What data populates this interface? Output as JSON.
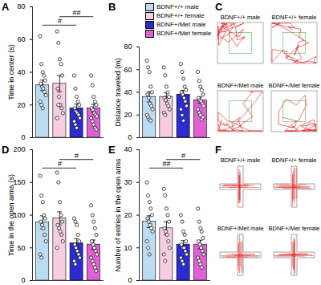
{
  "chart_data": [
    {
      "title": "A",
      "type": "bar",
      "y_label": "Time in center (s)",
      "categories": [
        "BDNF+/+ male",
        "BDNF+/+ female",
        "BDNF+/Met male",
        "BDNF+/Met female"
      ],
      "colors": [
        "#bcdcf3",
        "#f6cde3",
        "#2b2bd0",
        "#e25fd6"
      ],
      "values": [
        32,
        33,
        18,
        18
      ],
      "errors": [
        3.2,
        5,
        2.5,
        2.4
      ],
      "points": [
        [
          62,
          45,
          40,
          38,
          35,
          33,
          31,
          30,
          28,
          26,
          22,
          20,
          18
        ],
        [
          65,
          58,
          48,
          45,
          38,
          30,
          25,
          20,
          18,
          15,
          12,
          20
        ],
        [
          38,
          30,
          25,
          22,
          20,
          18,
          16,
          15,
          14,
          12,
          10,
          8,
          6
        ],
        [
          38,
          32,
          25,
          22,
          20,
          18,
          17,
          15,
          14,
          13,
          12,
          10,
          8,
          6,
          5
        ]
      ],
      "ylim": [
        0,
        80
      ],
      "yticks": [
        0,
        20,
        40,
        60,
        80
      ],
      "tick_labels": "y",
      "significance": [
        {
          "groups": [
            0,
            2
          ],
          "label": "#"
        },
        {
          "groups": [
            1,
            3
          ],
          "label": "##"
        }
      ]
    },
    {
      "title": "B",
      "type": "bar",
      "y_label": "Distance traveled (m)",
      "categories": [
        "BDNF+/+ male",
        "BDNF+/+ female",
        "BDNF+/Met male",
        "BDNF+/Met female"
      ],
      "colors": [
        "#bcdcf3",
        "#f6cde3",
        "#2b2bd0",
        "#e25fd6"
      ],
      "values": [
        36,
        36,
        38,
        33
      ],
      "errors": [
        4.5,
        3.5,
        3.8,
        2.8
      ],
      "points": [
        [
          68,
          62,
          58,
          45,
          40,
          38,
          35,
          30,
          28,
          25,
          20,
          18,
          16,
          15
        ],
        [
          62,
          55,
          45,
          40,
          36,
          35,
          33,
          30,
          28,
          25,
          22,
          20
        ],
        [
          65,
          58,
          52,
          45,
          42,
          40,
          38,
          35,
          32,
          28,
          25,
          20,
          15
        ],
        [
          58,
          50,
          45,
          42,
          38,
          35,
          33,
          32,
          30,
          28,
          25,
          22,
          20,
          16,
          18
        ]
      ],
      "ylim": [
        0,
        80
      ],
      "yticks": [
        0,
        20,
        40,
        60,
        80
      ],
      "tick_labels": "y",
      "legend": "top-right",
      "significance": []
    },
    {
      "title": "D",
      "type": "bar",
      "y_label": "Time in the open arms (s)",
      "categories": [
        "BDNF+/+ male",
        "BDNF+/+ female",
        "BDNF+/Met male",
        "BDNF+/Met female"
      ],
      "colors": [
        "#bcdcf3",
        "#f6cde3",
        "#2b2bd0",
        "#e25fd6"
      ],
      "values": [
        89,
        95,
        57,
        55
      ],
      "errors": [
        10,
        10,
        7,
        7
      ],
      "points": [
        [
          160,
          130,
          120,
          100,
          95,
          90,
          85,
          80,
          70,
          60,
          40,
          35
        ],
        [
          165,
          150,
          120,
          100,
          90,
          85,
          80,
          75,
          70,
          60,
          50
        ],
        [
          95,
          90,
          85,
          70,
          60,
          55,
          50,
          45,
          40,
          35,
          30,
          25
        ],
        [
          115,
          100,
          90,
          80,
          70,
          60,
          55,
          50,
          45,
          40,
          35,
          30,
          25,
          20,
          15
        ]
      ],
      "ylim": [
        0,
        200
      ],
      "yticks": [
        0,
        50,
        100,
        150,
        200
      ],
      "tick_labels": "y",
      "significance": [
        {
          "groups": [
            0,
            2
          ],
          "label": "#"
        },
        {
          "groups": [
            1,
            3
          ],
          "label": "#"
        }
      ]
    },
    {
      "title": "E",
      "type": "bar",
      "y_label": "Number of entries in the open arms",
      "categories": [
        "BDNF+/+ male",
        "BDNF+/+ female",
        "BDNF+/Met male",
        "BDNF+/Met female"
      ],
      "colors": [
        "#bcdcf3",
        "#f6cde3",
        "#2b2bd0",
        "#e25fd6"
      ],
      "values": [
        18,
        16,
        11,
        11
      ],
      "errors": [
        1.8,
        2,
        1.2,
        1.3
      ],
      "points": [
        [
          30,
          26,
          24,
          22,
          20,
          19,
          18,
          17,
          16,
          15,
          12,
          10,
          8
        ],
        [
          28,
          26,
          22,
          20,
          18,
          16,
          15,
          14,
          12,
          10,
          8,
          6
        ],
        [
          20,
          18,
          15,
          14,
          12,
          11,
          10,
          10,
          9,
          8,
          7,
          6,
          5
        ],
        [
          22,
          18,
          16,
          15,
          13,
          12,
          11,
          10,
          9,
          8,
          7,
          6,
          5,
          4
        ]
      ],
      "ylim": [
        0,
        40
      ],
      "yticks": [
        0,
        10,
        20,
        30,
        40
      ],
      "tick_labels": "y",
      "significance": [
        {
          "groups": [
            0,
            2
          ],
          "label": "##"
        },
        {
          "groups": [
            1,
            3
          ],
          "label": "#"
        }
      ]
    }
  ],
  "track_panels": [
    {
      "title": "C",
      "type": "open field",
      "labels": [
        "BDNF+/+ male",
        "BDNF+/+ female",
        "BDNF+/Met male",
        "BDNF+/Met female"
      ]
    },
    {
      "title": "F",
      "type": "plus maze",
      "labels": [
        "BDNF+/+ male",
        "BDNF+/+ female",
        "BDNF+/Met male",
        "BDNF+/Met female"
      ]
    }
  ]
}
